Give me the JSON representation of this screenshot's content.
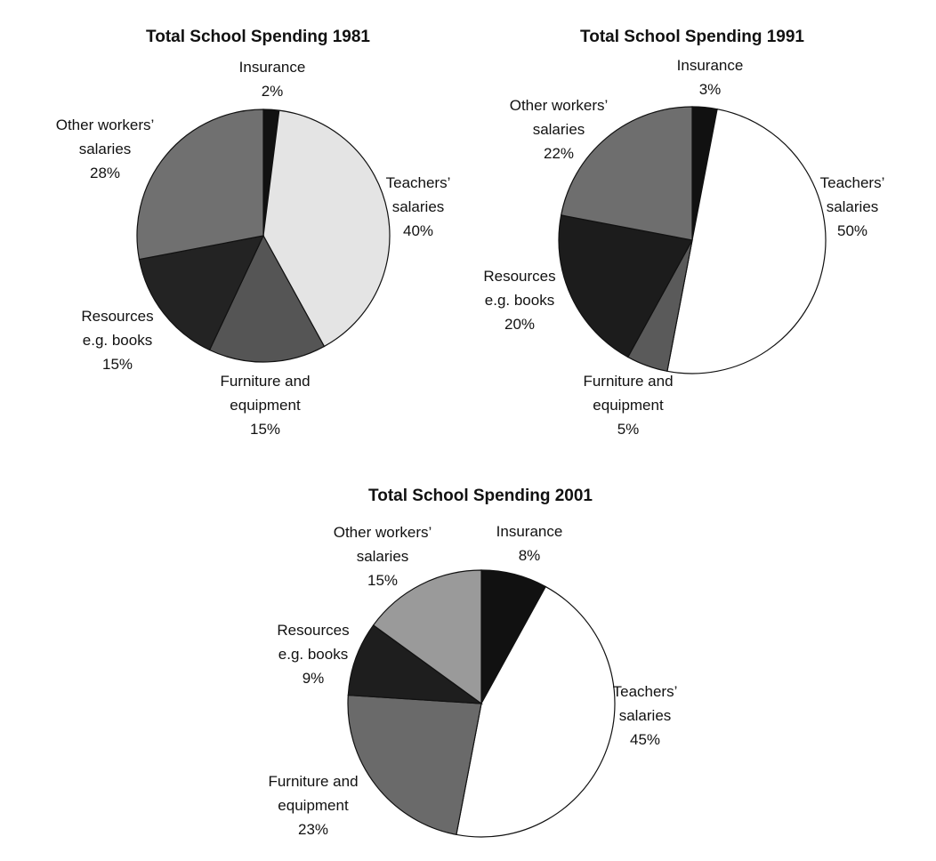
{
  "chart_data": [
    {
      "type": "pie",
      "title": "Total School Spending 1981",
      "categories": [
        "Insurance",
        "Teachers’ salaries",
        "Furniture and equipment",
        "Resources e.g. books",
        "Other workers’ salaries"
      ],
      "values": [
        2,
        40,
        15,
        15,
        28
      ],
      "value_labels": [
        "2%",
        "40%",
        "15%",
        "15%",
        "28%"
      ],
      "colors": [
        "#111111",
        "#e4e4e4",
        "#555555",
        "#232323",
        "#707070"
      ]
    },
    {
      "type": "pie",
      "title": "Total School Spending 1991",
      "categories": [
        "Insurance",
        "Teachers’ salaries",
        "Furniture and equipment",
        "Resources e.g. books",
        "Other workers’ salaries"
      ],
      "values": [
        3,
        50,
        5,
        20,
        22
      ],
      "value_labels": [
        "3%",
        "50%",
        "5%",
        "20%",
        "22%"
      ],
      "colors": [
        "#111111",
        "#ffffff",
        "#5a5a5a",
        "#1c1c1c",
        "#6e6e6e"
      ]
    },
    {
      "type": "pie",
      "title": "Total School Spending 2001",
      "categories": [
        "Insurance",
        "Teachers’ salaries",
        "Furniture and equipment",
        "Resources e.g. books",
        "Other workers’ salaries"
      ],
      "values": [
        8,
        45,
        23,
        9,
        15
      ],
      "value_labels": [
        "8%",
        "45%",
        "23%",
        "9%",
        "15%"
      ],
      "colors": [
        "#111111",
        "#ffffff",
        "#6a6a6a",
        "#1e1e1e",
        "#9a9a9a"
      ]
    }
  ]
}
